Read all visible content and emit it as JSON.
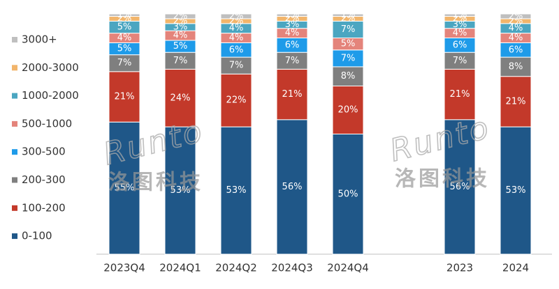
{
  "chart_data": {
    "type": "stacked_bar",
    "categories": [
      "2023Q4",
      "2024Q1",
      "2024Q2",
      "2024Q3",
      "2024Q4",
      null,
      "2023",
      "2024"
    ],
    "ylim": [
      0,
      100
    ],
    "watermark": {
      "brand": "Runto",
      "name": "洛图科技"
    },
    "series": [
      {
        "name": "0-100",
        "color": "#1f5788",
        "values": [
          55,
          53,
          53,
          56,
          50,
          null,
          56,
          53
        ],
        "value_labels": [
          "55%",
          "53%",
          "53%",
          "56%",
          "50%",
          null,
          "56%",
          "53%"
        ]
      },
      {
        "name": "100-200",
        "color": "#c3392a",
        "values": [
          21,
          24,
          22,
          21,
          20,
          null,
          21,
          21
        ],
        "value_labels": [
          "21%",
          "24%",
          "22%",
          "21%",
          "20%",
          null,
          "21%",
          "21%"
        ]
      },
      {
        "name": "200-300",
        "color": "#7f7f7f",
        "values": [
          7,
          7,
          7,
          7,
          8,
          null,
          7,
          8
        ],
        "value_labels": [
          "7%",
          "7%",
          "7%",
          "7%",
          "8%",
          null,
          "7%",
          "8%"
        ]
      },
      {
        "name": "300-500",
        "color": "#1e9be9",
        "values": [
          5,
          5,
          6,
          6,
          7,
          null,
          6,
          6
        ],
        "value_labels": [
          "5%",
          "5%",
          "6%",
          "6%",
          "7%",
          null,
          "6%",
          "6%"
        ]
      },
      {
        "name": "500-1000",
        "color": "#e4847b",
        "values": [
          4,
          4,
          4,
          4,
          5,
          null,
          4,
          4
        ],
        "value_labels": [
          "4%",
          "4%",
          "4%",
          "4%",
          "5%",
          null,
          "4%",
          "4%"
        ]
      },
      {
        "name": "1000-2000",
        "color": "#4ba6c1",
        "values": [
          5,
          3,
          4,
          3,
          7,
          null,
          3,
          4
        ],
        "value_labels": [
          "5%",
          "3%",
          "4%",
          "3%",
          "7%",
          null,
          "3%",
          "4%"
        ]
      },
      {
        "name": "2000-3000",
        "color": "#f2b56b",
        "values": [
          2,
          2,
          2,
          2,
          2,
          null,
          2,
          2
        ],
        "value_labels": [
          "2%",
          "2%",
          "2%",
          "2%",
          "2%",
          null,
          "2%",
          "2%"
        ]
      },
      {
        "name": "3000+",
        "color": "#bfbfbf",
        "values": [
          1,
          2,
          2,
          1,
          1,
          null,
          1,
          2
        ],
        "value_labels": [
          "1%",
          "2%",
          "2%",
          "1%",
          "1%",
          null,
          "1%",
          "2%"
        ]
      }
    ]
  }
}
